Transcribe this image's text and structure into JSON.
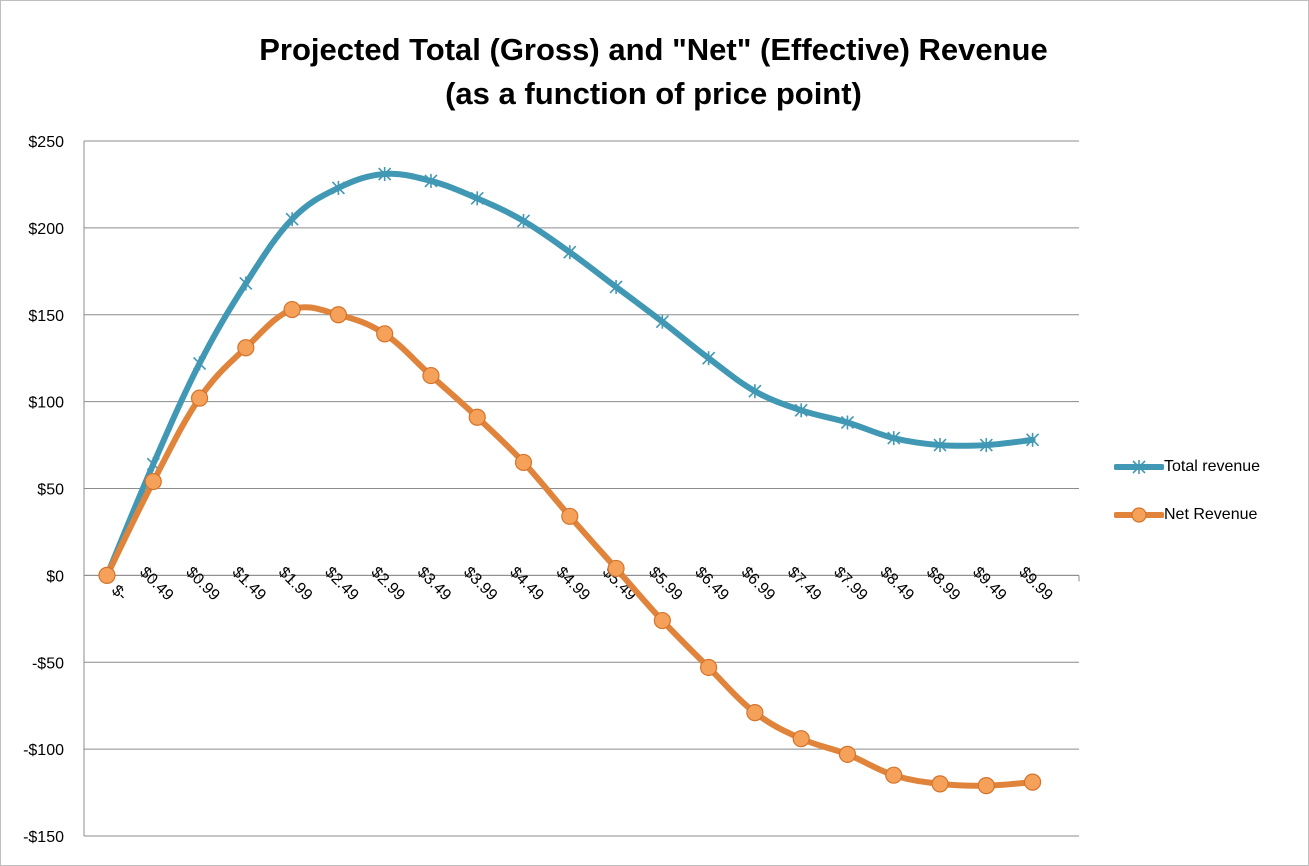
{
  "chart_data": {
    "type": "line",
    "title_line1": "Projected Total (Gross) and \"Net\" (Effective) Revenue",
    "title_line2": "(as a function of price point)",
    "xlabel": "",
    "ylabel": "",
    "ylim": [
      -150,
      250
    ],
    "yticks": [
      250,
      200,
      150,
      100,
      50,
      0,
      -50,
      -100,
      -150
    ],
    "ytick_labels": [
      "$250",
      "$200",
      "$150",
      "$100",
      "$50",
      "$0",
      "-$50",
      "-$100",
      "-$150"
    ],
    "categories": [
      "$-",
      "$0.49",
      "$0.99",
      "$1.49",
      "$1.99",
      "$2.49",
      "$2.99",
      "$3.49",
      "$3.99",
      "$4.49",
      "$4.99",
      "$5.49",
      "$5.99",
      "$6.49",
      "$6.99",
      "$7.49",
      "$7.99",
      "$8.49",
      "$8.99",
      "$9.49",
      "$9.99"
    ],
    "grid": "horizontal",
    "legend_position": "right",
    "series": [
      {
        "name": "Total revenue",
        "color": "#4198b4",
        "marker": "star",
        "values": [
          0,
          64,
          122,
          168,
          205,
          223,
          231,
          227,
          217,
          204,
          186,
          166,
          146,
          125,
          106,
          95,
          88,
          79,
          75,
          75,
          78
        ]
      },
      {
        "name": "Net Revenue",
        "color": "#e0843c",
        "marker": "circle",
        "values": [
          0,
          54,
          102,
          131,
          153,
          150,
          139,
          115,
          91,
          65,
          34,
          4,
          -26,
          -53,
          -79,
          -94,
          -103,
          -115,
          -120,
          -121,
          -119
        ]
      }
    ]
  }
}
